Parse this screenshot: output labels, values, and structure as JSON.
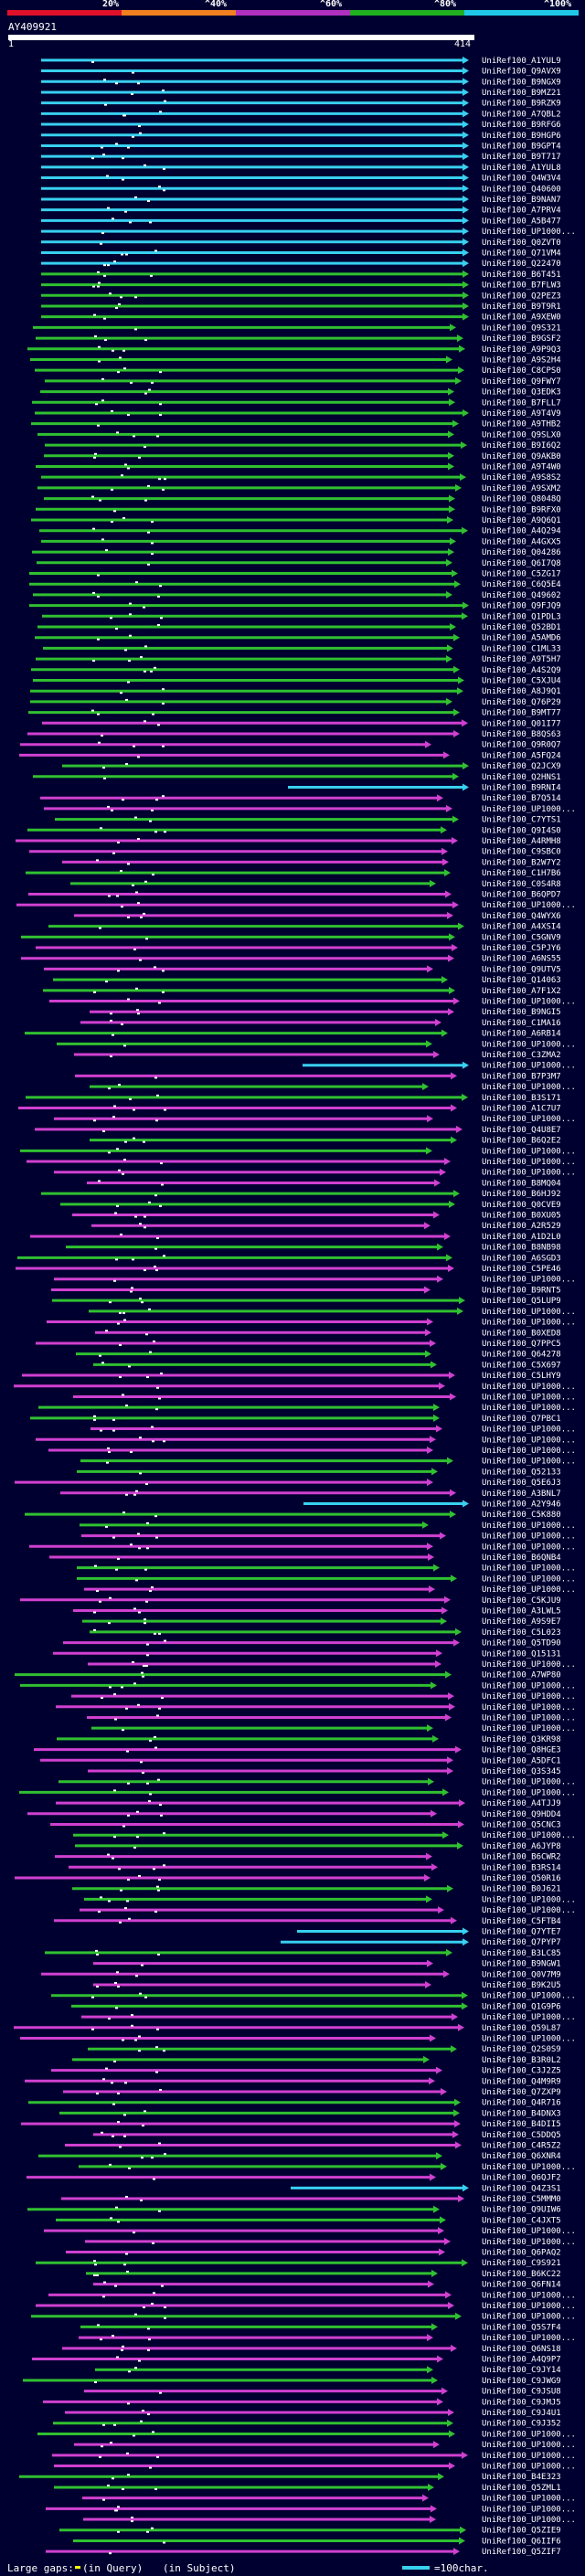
{
  "scale": {
    "labels": [
      "20%",
      "^40%",
      "^60%",
      "^80%",
      "^100%"
    ],
    "colors": [
      "#e0102a",
      "#f08020",
      "#b030c0",
      "#20b020",
      "#20c8e8"
    ]
  },
  "query": {
    "id": "AY409921",
    "start": "1",
    "end": "414"
  },
  "colors": {
    "background": "#000030",
    "cyan": "#38d0f0",
    "green": "#30c030",
    "magenta": "#d040d0",
    "text": "#ffffff"
  },
  "hits": [
    "UniRef100_A1YUL9",
    "UniRef100_Q9AVX9",
    "UniRef100_B9NGX9",
    "UniRef100_B9MZ21",
    "UniRef100_B9RZK9",
    "UniRef100_A7QBL2",
    "UniRef100_B9RFG6",
    "UniRef100_B9HGP6",
    "UniRef100_B9GPT4",
    "UniRef100_B9T717",
    "UniRef100_A1YUL8",
    "UniRef100_Q4W3V4",
    "UniRef100_Q40600",
    "UniRef100_B9NAN7",
    "UniRef100_A7PRV4",
    "UniRef100_A5B477",
    "UniRef100_UP1000...",
    "UniRef100_Q0ZVT0",
    "UniRef100_Q71VM4",
    "UniRef100_Q22470",
    "UniRef100_B6T451",
    "UniRef100_B7FLW3",
    "UniRef100_Q2PEZ3",
    "UniRef100_B9T9R1",
    "UniRef100_A9XEW0",
    "UniRef100_Q9S321",
    "UniRef100_B9GSF2",
    "UniRef100_A9P9Q3",
    "UniRef100_A9S2H4",
    "UniRef100_C8CPS0",
    "UniRef100_Q9FWY7",
    "UniRef100_Q3EDK3",
    "UniRef100_B7FLL7",
    "UniRef100_A9T4V9",
    "UniRef100_A9THB2",
    "UniRef100_Q9SLX0",
    "UniRef100_B9I6Q2",
    "UniRef100_Q9AKB0",
    "UniRef100_A9T4W0",
    "UniRef100_A9S8S2",
    "UniRef100_A9SXM2",
    "UniRef100_Q8048Q",
    "UniRef100_B9RFX0",
    "UniRef100_A9Q6Q1",
    "UniRef100_A4Q294",
    "UniRef100_A4GXX5",
    "UniRef100_Q04286",
    "UniRef100_Q6I7Q8",
    "UniRef100_C5ZG17",
    "UniRef100_C6Q5E4",
    "UniRef100_Q49602",
    "UniRef100_Q9FJQ9",
    "UniRef100_Q1PDL3",
    "UniRef100_Q52BD1",
    "UniRef100_A5AMD6",
    "UniRef100_C1ML33",
    "UniRef100_A9T5H7",
    "UniRef100_A4S2Q9",
    "UniRef100_C5XJU4",
    "UniRef100_A8J9Q1",
    "UniRef100_Q76P29",
    "UniRef100_B9MT77",
    "UniRef100_Q01I77",
    "UniRef100_B8QS63",
    "UniRef100_Q9R0Q7",
    "UniRef100_A5FQ24",
    "UniRef100_Q2JCX9",
    "UniRef100_Q2HNS1",
    "UniRef100_B9RNI4",
    "UniRef100_B7Q514",
    "UniRef100_UP1000...",
    "UniRef100_C7YTS1",
    "UniRef100_Q9I4S0",
    "UniRef100_A4RMH8",
    "UniRef100_C9SBC0",
    "UniRef100_B2W7Y2",
    "UniRef100_C1H7B6",
    "UniRef100_C0S4R8",
    "UniRef100_B6QPD7",
    "UniRef100_UP1000...",
    "UniRef100_Q4WYX6",
    "UniRef100_A4XSI4",
    "UniRef100_C5GNV9",
    "UniRef100_C5PJY6",
    "UniRef100_A6NS55",
    "UniRef100_Q9UTV5",
    "UniRef100_Q14063",
    "UniRef100_A7F1X2",
    "UniRef100_UP1000...",
    "UniRef100_B9NGI5",
    "UniRef100_C1MA16",
    "UniRef100_A6RB14",
    "UniRef100_UP1000...",
    "UniRef100_C3ZMA2",
    "UniRef100_UP1000...",
    "UniRef100_B7P3M7",
    "UniRef100_UP1000...",
    "UniRef100_B3S171",
    "UniRef100_A1C7U7",
    "UniRef100_UP1000...",
    "UniRef100_Q4U8E7",
    "UniRef100_B6Q2E2",
    "UniRef100_UP1000...",
    "UniRef100_UP1000...",
    "UniRef100_UP1000...",
    "UniRef100_B8MQ04",
    "UniRef100_B6HJ92",
    "UniRef100_Q0CVE9",
    "UniRef100_B0XU05",
    "UniRef100_A2R529",
    "UniRef100_A1D2L0",
    "UniRef100_B8NB98",
    "UniRef100_A6SGD3",
    "UniRef100_C5PE46",
    "UniRef100_UP1000...",
    "UniRef100_B9RNT5",
    "UniRef100_Q5LUP9",
    "UniRef100_UP1000...",
    "UniRef100_UP1000...",
    "UniRef100_B0XED8",
    "UniRef100_Q7PPC5",
    "UniRef100_Q64278",
    "UniRef100_C5X697",
    "UniRef100_C5LHY9",
    "UniRef100_UP1000...",
    "UniRef100_UP1000...",
    "UniRef100_UP1000...",
    "UniRef100_Q7PBC1",
    "UniRef100_UP1000...",
    "UniRef100_UP1000...",
    "UniRef100_UP1000...",
    "UniRef100_UP1000...",
    "UniRef100_Q52133",
    "UniRef100_Q5E6J3",
    "UniRef100_A3BNL7",
    "UniRef100_A2Y946",
    "UniRef100_C5K880",
    "UniRef100_UP1000...",
    "UniRef100_UP1000...",
    "UniRef100_UP1000...",
    "UniRef100_B6QNB4",
    "UniRef100_UP1000...",
    "UniRef100_UP1000...",
    "UniRef100_UP1000...",
    "UniRef100_C5KJU9",
    "UniRef100_A3LWL5",
    "UniRef100_A9S9E7",
    "UniRef100_C5L023",
    "UniRef100_Q5TD90",
    "UniRef100_Q15131",
    "UniRef100_UP1000...",
    "UniRef100_A7WP80",
    "UniRef100_UP1000...",
    "UniRef100_UP1000...",
    "UniRef100_UP1000...",
    "UniRef100_UP1000...",
    "UniRef100_UP1000...",
    "UniRef100_Q3KR98",
    "UniRef100_Q8HGE3",
    "UniRef100_A5DFC1",
    "UniRef100_Q3S345",
    "UniRef100_UP1000...",
    "UniRef100_UP1000...",
    "UniRef100_A4TJJ9",
    "UniRef100_Q9HDD4",
    "UniRef100_Q5CNC3",
    "UniRef100_UP1000...",
    "UniRef100_A6JYP8",
    "UniRef100_B6CWR2",
    "UniRef100_B3RS14",
    "UniRef100_Q50R16",
    "UniRef100_B0J621",
    "UniRef100_UP1000...",
    "UniRef100_UP1000...",
    "UniRef100_C5FTB4",
    "UniRef100_Q7YTE7",
    "UniRef100_Q7PYP7",
    "UniRef100_B3LC85",
    "UniRef100_B9NGW1",
    "UniRef100_Q0V7M9",
    "UniRef100_B9K2U5",
    "UniRef100_UP1000...",
    "UniRef100_Q1G9P6",
    "UniRef100_UP1000...",
    "UniRef100_Q59L87",
    "UniRef100_UP1000...",
    "UniRef100_Q2S0S9",
    "UniRef100_B3R0L2",
    "UniRef100_C3J2Z5",
    "UniRef100_Q4M9R9",
    "UniRef100_Q7ZXP9",
    "UniRef100_Q4R716",
    "UniRef100_B4DNX3",
    "UniRef100_B4DII5",
    "UniRef100_C5DDQ5",
    "UniRef100_C4R5Z2",
    "UniRef100_Q6XNR4",
    "UniRef100_UP1000...",
    "UniRef100_Q6QJF2",
    "UniRef100_Q4Z3S1",
    "UniRef100_C5MMM0",
    "UniRef100_Q9UIW6",
    "UniRef100_C4JXT5",
    "UniRef100_UP1000...",
    "UniRef100_UP1000...",
    "UniRef100_Q6PAQ2",
    "UniRef100_C9S921",
    "UniRef100_B6KC22",
    "UniRef100_Q6FN14",
    "UniRef100_UP1000...",
    "UniRef100_UP1000...",
    "UniRef100_UP1000...",
    "UniRef100_Q5S7F4",
    "UniRef100_UP1000...",
    "UniRef100_Q6NS18",
    "UniRef100_A4Q9P7",
    "UniRef100_C9JY14",
    "UniRef100_C9JWG9",
    "UniRef100_C9JSU8",
    "UniRef100_C9JMJ5",
    "UniRef100_C9J4U1",
    "UniRef100_C9J352",
    "UniRef100_UP1000...",
    "UniRef100_UP1000...",
    "UniRef100_UP1000...",
    "UniRef100_UP1000...",
    "UniRef100_B4E323",
    "UniRef100_Q5ZML1",
    "UniRef100_UP1000...",
    "UniRef100_UP1000...",
    "UniRef100_UP1000...",
    "UniRef100_Q5ZIE9",
    "UniRef100_Q6IIF6",
    "UniRef100_Q5ZIF7"
  ],
  "legend": {
    "gaps_label": "Large gaps:",
    "query_gap": "(in Query)",
    "subject_gap": "(in Subject)",
    "scale_label": "=100char."
  }
}
